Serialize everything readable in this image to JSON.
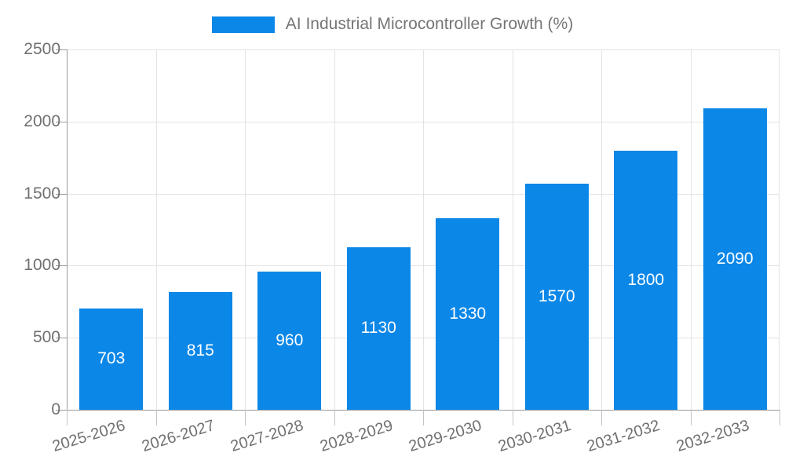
{
  "chart_data": {
    "type": "bar",
    "title": "AI Industrial Microcontroller Growth (%)",
    "categories": [
      "2025-2026",
      "2026-2027",
      "2027-2028",
      "2028-2029",
      "2029-2030",
      "2030-2031",
      "2031-2032",
      "2032-2033"
    ],
    "values": [
      703,
      815,
      960,
      1130,
      1330,
      1570,
      1800,
      2090
    ],
    "value_labels": [
      "703",
      "815",
      "960",
      "1130",
      "1330",
      "1570",
      "1800",
      "2090"
    ],
    "xlabel": "",
    "ylabel": "",
    "ylim": [
      0,
      2500
    ],
    "yticks": [
      0,
      500,
      1000,
      1500,
      2000,
      2500
    ],
    "ytick_labels": [
      "0",
      "500",
      "1000",
      "1500",
      "2000",
      "2500"
    ],
    "grid": true,
    "legend_position": "top",
    "colors": {
      "bar": "#0b87e8",
      "bar_value_text": "#ffffff",
      "axis_text": "#707070",
      "legend_text": "#757575",
      "gridline": "#e3e3e3",
      "axis_line": "#9b9b9b",
      "background": "#ffffff"
    }
  }
}
